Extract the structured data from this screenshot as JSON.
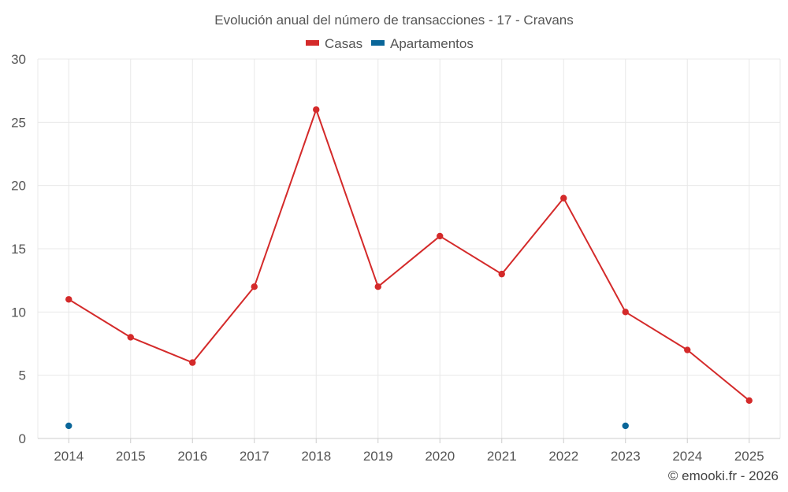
{
  "chart_data": {
    "type": "line",
    "title": "Evolución anual del número de transacciones - 17 - Cravans",
    "categories": [
      "2014",
      "2015",
      "2016",
      "2017",
      "2018",
      "2019",
      "2020",
      "2021",
      "2022",
      "2023",
      "2024",
      "2025"
    ],
    "series": [
      {
        "name": "Casas",
        "color": "#d42a2a",
        "values": [
          11,
          8,
          6,
          12,
          26,
          12,
          16,
          13,
          19,
          10,
          7,
          3
        ]
      },
      {
        "name": "Apartamentos",
        "color": "#0a6699",
        "values": [
          1,
          null,
          null,
          null,
          null,
          null,
          null,
          null,
          null,
          1,
          null,
          null
        ]
      }
    ],
    "ylim": [
      0,
      30
    ],
    "yticks": [
      "0",
      "5",
      "10",
      "15",
      "20",
      "25",
      "30"
    ],
    "grid": true,
    "legend": "top-center",
    "xlabel": "",
    "ylabel": ""
  },
  "credit": "© emooki.fr - 2026"
}
